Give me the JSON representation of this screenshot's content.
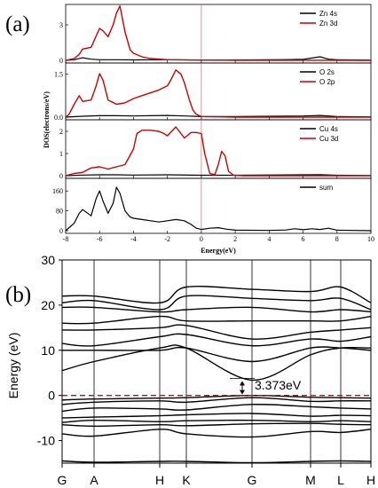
{
  "chart_data": [
    {
      "type": "line",
      "panel_label": "(a)",
      "xlabel": "Energy(eV)",
      "ylabel": "DOS(electrons/eV)",
      "xlim": [
        -8,
        10
      ],
      "x_ticks": [
        "-8",
        "-6",
        "-4",
        "-2",
        "0",
        "2",
        "4",
        "6",
        "8",
        "10"
      ],
      "fermi_level": 0,
      "subplots": [
        {
          "name": "Zn",
          "ylim": [
            0,
            4.5
          ],
          "y_ticks": [
            "0",
            "3"
          ],
          "legend": [
            "Zn 4s",
            "Zn 3d"
          ],
          "series": [
            {
              "name": "Zn 4s",
              "color": "#000000",
              "x": [
                -8,
                -7.5,
                -7,
                -6.5,
                -6,
                -5,
                -4,
                -2,
                0,
                2,
                4,
                5,
                6,
                7,
                7.5,
                8,
                10
              ],
              "values": [
                0,
                0.05,
                0.22,
                0.1,
                0.05,
                0.05,
                0.04,
                0.05,
                0.02,
                0.03,
                0.05,
                0.06,
                0.08,
                0.3,
                0.1,
                0.05,
                0.02
              ]
            },
            {
              "name": "Zn 3d",
              "color": "#cc0000",
              "x": [
                -8,
                -7.5,
                -7.2,
                -7,
                -6.5,
                -6,
                -5.8,
                -5.5,
                -5.2,
                -5,
                -4.8,
                -4.5,
                -4.2,
                -4,
                -3.5,
                -3,
                -2,
                0,
                2,
                10
              ],
              "values": [
                0,
                0.15,
                0.5,
                0.95,
                1.1,
                2.7,
                2.5,
                2.0,
                3.0,
                4.0,
                4.6,
                2.4,
                0.9,
                0.6,
                0.3,
                0.15,
                0.05,
                0.02,
                0.01,
                0
              ]
            }
          ]
        },
        {
          "name": "O",
          "ylim": [
            0,
            1.8
          ],
          "y_ticks": [
            "0.0",
            "1.5"
          ],
          "legend": [
            "O 2s",
            "O 2p"
          ],
          "series": [
            {
              "name": "O 2s",
              "color": "#000000",
              "x": [
                -8,
                -7,
                -6,
                -5,
                -4,
                -3,
                -2,
                -1,
                0,
                2,
                6,
                7,
                8,
                10
              ],
              "values": [
                0,
                0.03,
                0.05,
                0.05,
                0.04,
                0.05,
                0.06,
                0.04,
                0.02,
                0.02,
                0.04,
                0.06,
                0.02,
                0.01
              ]
            },
            {
              "name": "O 2p",
              "color": "#cc0000",
              "x": [
                -8,
                -7.8,
                -7.5,
                -7.2,
                -7,
                -6.5,
                -6.2,
                -6,
                -5.8,
                -5.5,
                -5,
                -4.5,
                -4,
                -3.5,
                -3,
                -2.5,
                -2,
                -1.8,
                -1.5,
                -1.2,
                -1,
                -0.7,
                -0.5,
                -0.3,
                0,
                2,
                10
              ],
              "values": [
                0,
                0.1,
                0.45,
                0.75,
                0.55,
                0.6,
                1.1,
                1.52,
                1.3,
                0.6,
                0.45,
                0.5,
                0.65,
                0.75,
                0.85,
                0.95,
                1.1,
                1.3,
                1.65,
                1.5,
                1.2,
                0.6,
                0.25,
                0.1,
                0.02,
                0,
                0
              ]
            }
          ]
        },
        {
          "name": "Cu",
          "ylim": [
            0,
            2.4
          ],
          "y_ticks": [
            "0",
            "1",
            "2"
          ],
          "legend": [
            "Cu 4s",
            "Cu 3d"
          ],
          "series": [
            {
              "name": "Cu 4s",
              "color": "#000000",
              "x": [
                -8,
                -7,
                -6,
                -5,
                -4,
                -2,
                0,
                2,
                6,
                7,
                8,
                10
              ],
              "values": [
                0,
                0.03,
                0.04,
                0.04,
                0.03,
                0.04,
                0.02,
                0.02,
                0.04,
                0.05,
                0.02,
                0.01
              ]
            },
            {
              "name": "Cu 3d",
              "color": "#cc0000",
              "x": [
                -8,
                -7.5,
                -7,
                -6.5,
                -6,
                -5.5,
                -5,
                -4.5,
                -4,
                -3.8,
                -3.5,
                -3,
                -2.5,
                -2.2,
                -2,
                -1.5,
                -1,
                -0.6,
                -0.3,
                0,
                0.2,
                0.5,
                0.8,
                1.0,
                1.2,
                1.4,
                1.6,
                1.9,
                2.5,
                10
              ],
              "values": [
                0,
                0.1,
                0.15,
                0.35,
                0.4,
                0.3,
                0.4,
                0.5,
                1.2,
                1.9,
                2.05,
                2.05,
                2.0,
                1.9,
                1.8,
                2.2,
                1.7,
                1.95,
                1.95,
                1.9,
                1.0,
                0.1,
                0.05,
                0.5,
                1.1,
                0.9,
                0.2,
                0.02,
                0,
                0
              ]
            }
          ]
        },
        {
          "name": "sum",
          "ylim": [
            0,
            200
          ],
          "y_ticks": [
            "0",
            "80",
            "160"
          ],
          "legend": [
            "sum"
          ],
          "series": [
            {
              "name": "sum",
              "color": "#000000",
              "x": [
                -8,
                -7.5,
                -7.2,
                -7,
                -6.5,
                -6.2,
                -6,
                -5.8,
                -5.5,
                -5.2,
                -5,
                -4.8,
                -4.5,
                -4.2,
                -4,
                -3.5,
                -3,
                -2.5,
                -2,
                -1.5,
                -1,
                -0.6,
                -0.3,
                0,
                0.5,
                1,
                1.5,
                2,
                4,
                5,
                5.5,
                6,
                6.5,
                7,
                7.5,
                8,
                10
              ],
              "values": [
                0,
                30,
                70,
                85,
                60,
                130,
                160,
                120,
                70,
                110,
                175,
                150,
                80,
                55,
                50,
                45,
                40,
                35,
                40,
                45,
                40,
                25,
                10,
                5,
                10,
                12,
                6,
                2,
                1,
                3,
                8,
                4,
                8,
                5,
                10,
                2,
                0
              ]
            }
          ]
        }
      ]
    },
    {
      "type": "line",
      "panel_label": "(b)",
      "ylabel": "Energy (eV)",
      "ylim": [
        -15,
        30
      ],
      "y_ticks": [
        "30",
        "20",
        "10",
        "0",
        "-10"
      ],
      "kpoints": [
        "G",
        "A",
        "H",
        "K",
        "G",
        "M",
        "L",
        "H"
      ],
      "gap_label": "3.373eV",
      "fermi_level": 0,
      "band_energies": [
        [
          -14.5,
          -14.8,
          -14.6,
          -14.6,
          -14.9,
          -14.6,
          -14.5,
          -14.6
        ],
        [
          -8.5,
          -9.0,
          -7.5,
          -8.5,
          -9.2,
          -8.0,
          -8.2,
          -7.5
        ],
        [
          -6.5,
          -6.8,
          -6.5,
          -6.7,
          -6.3,
          -6.2,
          -6.4,
          -6.5
        ],
        [
          -6.0,
          -5.5,
          -5.8,
          -5.6,
          -5.5,
          -5.8,
          -5.6,
          -5.8
        ],
        [
          -5.0,
          -4.8,
          -4.5,
          -4.3,
          -4.0,
          -4.6,
          -4.4,
          -4.5
        ],
        [
          -3.5,
          -2.8,
          -3.0,
          -3.2,
          -2.0,
          -2.5,
          -2.8,
          -3.0
        ],
        [
          -2.0,
          -1.5,
          -1.2,
          -1.5,
          -0.5,
          -1.3,
          -1.2,
          -1.2
        ],
        [
          -1.0,
          -0.8,
          -0.6,
          -0.5,
          0.0,
          -0.4,
          -0.5,
          -0.6
        ],
        [
          5.5,
          7.5,
          10.5,
          10.5,
          3.4,
          9.0,
          10.5,
          10.5
        ],
        [
          10.0,
          10.0,
          10.0,
          10.5,
          7.5,
          10.5,
          10.5,
          10.0
        ],
        [
          11.5,
          11.0,
          13.0,
          13.5,
          11.0,
          12.5,
          12.0,
          13.0
        ],
        [
          14.5,
          14.5,
          15.0,
          15.5,
          12.5,
          14.0,
          14.5,
          15.0
        ],
        [
          16.0,
          16.0,
          17.5,
          16.5,
          16.5,
          16.5,
          16.5,
          17.5
        ],
        [
          19.5,
          19.5,
          18.5,
          19.0,
          19.5,
          18.5,
          19.0,
          18.5
        ],
        [
          20.5,
          21.0,
          19.0,
          22.0,
          21.5,
          21.0,
          21.5,
          19.0
        ],
        [
          22.0,
          22.0,
          20.5,
          24.0,
          23.5,
          23.0,
          24.0,
          20.5
        ]
      ]
    }
  ]
}
